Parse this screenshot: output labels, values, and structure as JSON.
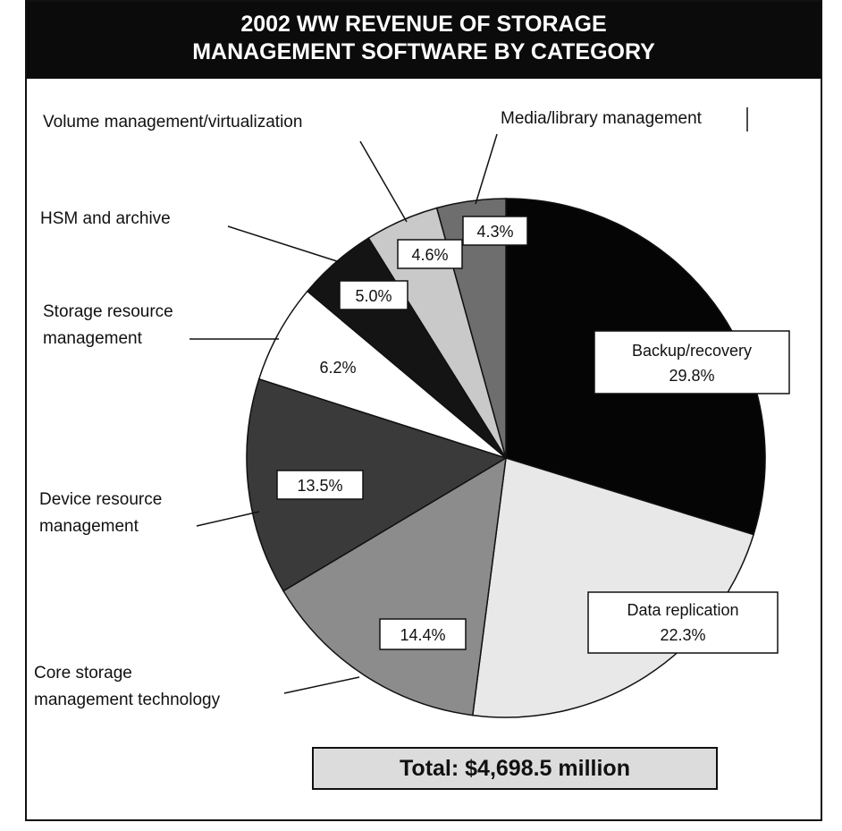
{
  "chart_data": {
    "type": "pie",
    "title_line1": "2002 WW REVENUE OF STORAGE",
    "title_line2": "MANAGEMENT SOFTWARE BY CATEGORY",
    "slices": [
      {
        "label": "Backup/recovery",
        "value": 29.8,
        "pct_text": "29.8%",
        "color": "#050505"
      },
      {
        "label": "Data replication",
        "value": 22.3,
        "pct_text": "22.3%",
        "color": "#e8e8e8"
      },
      {
        "label": "Core storage management technology",
        "value": 14.4,
        "pct_text": "14.4%",
        "color": "#8c8c8c"
      },
      {
        "label": "Device resource management",
        "value": 13.5,
        "pct_text": "13.5%",
        "color": "#3a3a3a"
      },
      {
        "label": "Storage resource management",
        "value": 6.2,
        "pct_text": "6.2%",
        "color": "#ffffff"
      },
      {
        "label": "HSM and archive",
        "value": 5.0,
        "pct_text": "5.0%",
        "color": "#141414"
      },
      {
        "label": "Volume management/virtualization",
        "value": 4.6,
        "pct_text": "4.6%",
        "color": "#c9c9c9"
      },
      {
        "label": "Media/library management",
        "value": 4.3,
        "pct_text": "4.3%",
        "color": "#6e6e6e"
      }
    ],
    "total_text": "Total: $4,698.5 million",
    "total_box_color": "#dcdcdc"
  },
  "labels": {
    "volume": "Volume management/virtualization",
    "media": "Media/library management",
    "hsm": "HSM and archive",
    "srm_line1": "Storage resource",
    "srm_line2": "management",
    "device_line1": "Device resource",
    "device_line2": "management",
    "core_line1": "Core storage",
    "core_line2": "management technology",
    "backup_name": "Backup/recovery",
    "backup_pct": "29.8%",
    "replication_name": "Data replication",
    "replication_pct": "22.3%"
  }
}
